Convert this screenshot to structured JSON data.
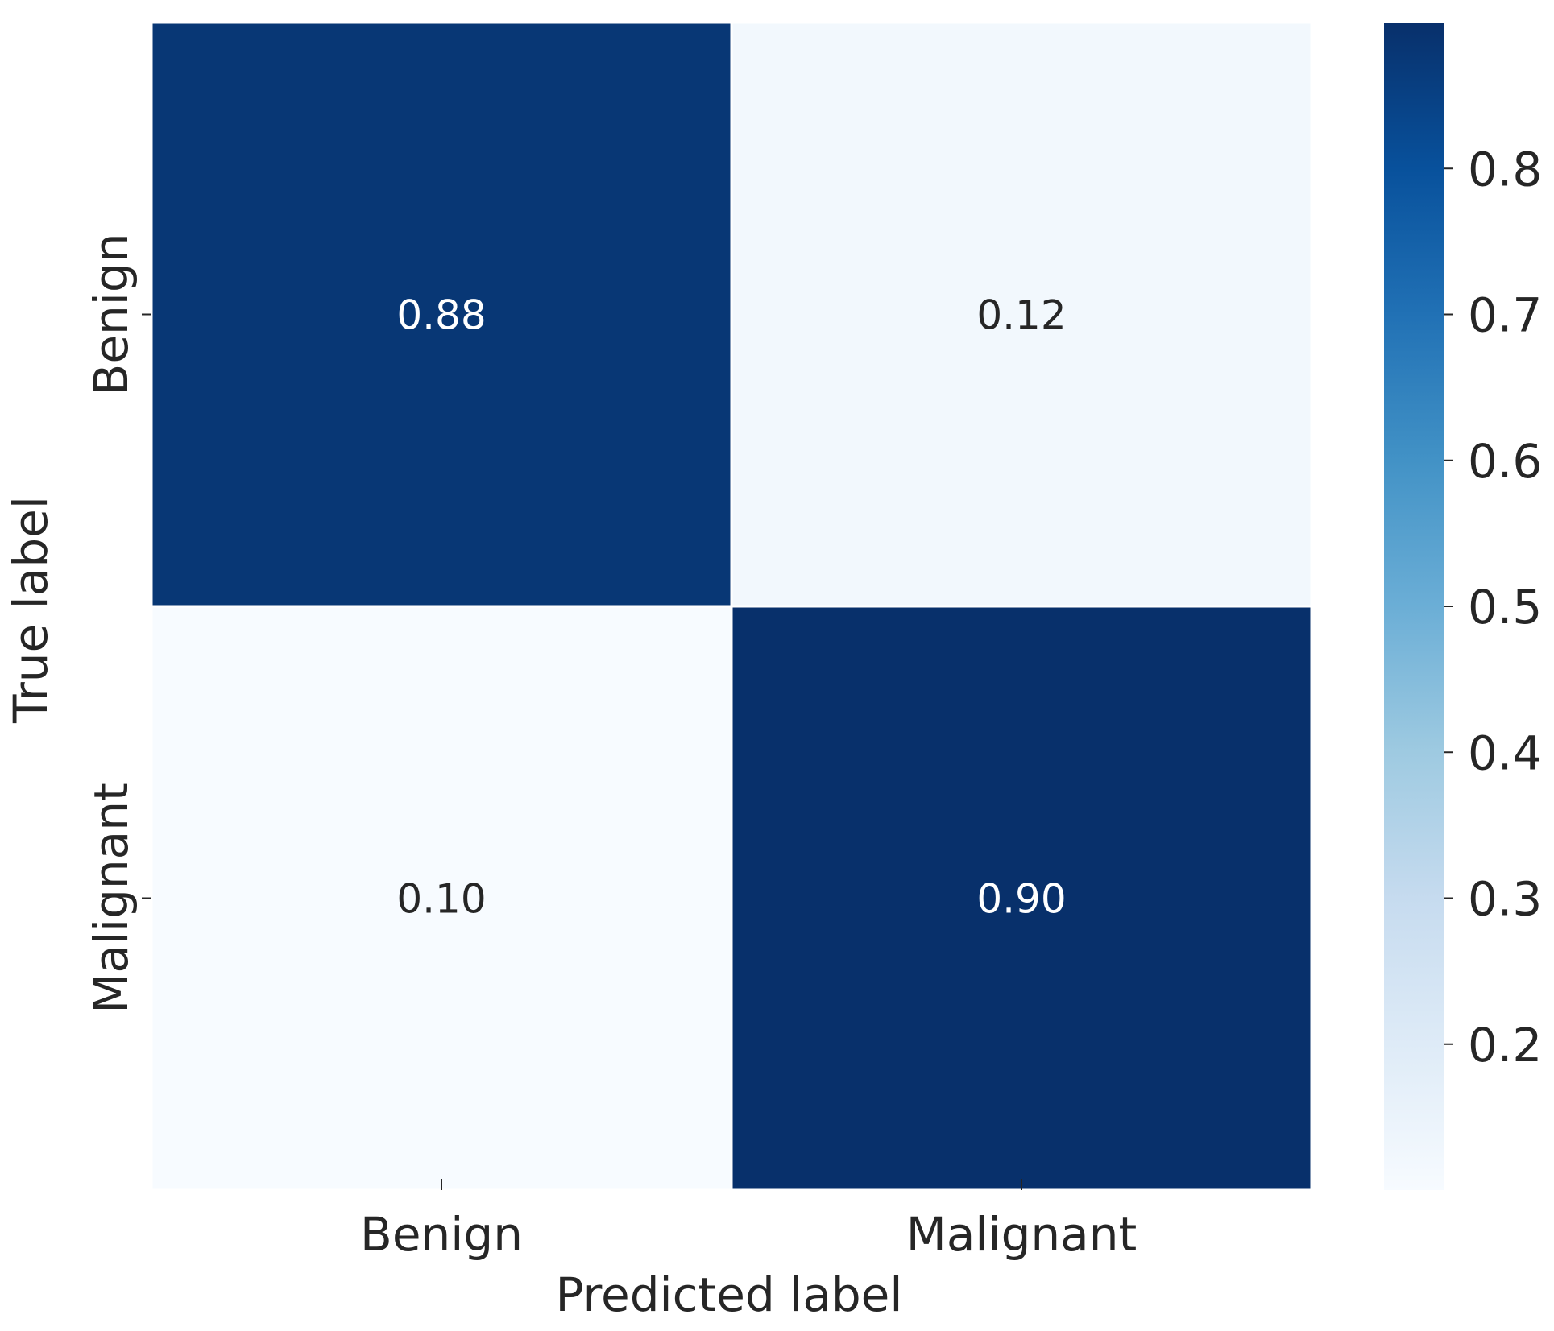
{
  "chart_data": {
    "type": "heatmap",
    "title": "",
    "xlabel": "Predicted label",
    "ylabel": "True label",
    "x_categories": [
      "Benign",
      "Malignant"
    ],
    "y_categories": [
      "Benign",
      "Malignant"
    ],
    "values": [
      [
        0.88,
        0.12
      ],
      [
        0.1,
        0.9
      ]
    ],
    "cell_labels": [
      [
        "0.88",
        "0.12"
      ],
      [
        "0.10",
        "0.90"
      ]
    ],
    "colormap": "Blues",
    "colorbar": {
      "range": [
        0.1,
        0.9
      ],
      "ticks": [
        0.2,
        0.3,
        0.4,
        0.5,
        0.6,
        0.7,
        0.8
      ],
      "tick_labels": [
        "0.2",
        "0.3",
        "0.4",
        "0.5",
        "0.6",
        "0.7",
        "0.8"
      ]
    }
  }
}
